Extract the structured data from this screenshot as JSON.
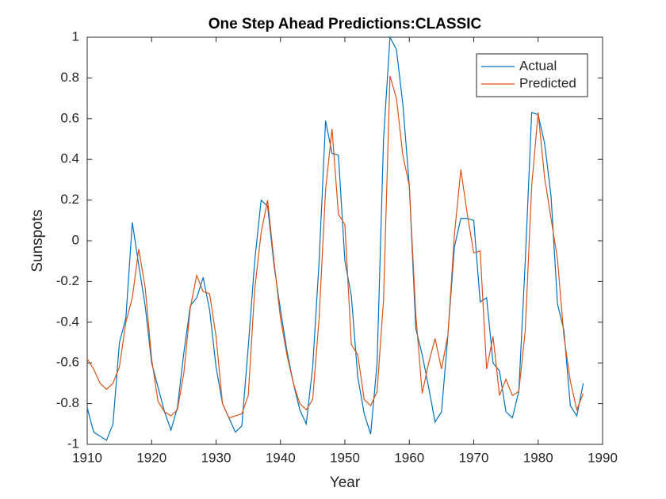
{
  "chart_data": {
    "type": "line",
    "title": "One Step Ahead Predictions:CLASSIC",
    "x_label": "Year",
    "y_label": "Sunspots",
    "x": [
      1910,
      1911,
      1912,
      1913,
      1914,
      1915,
      1916,
      1917,
      1918,
      1919,
      1920,
      1921,
      1922,
      1923,
      1924,
      1925,
      1926,
      1927,
      1928,
      1929,
      1930,
      1931,
      1932,
      1933,
      1934,
      1935,
      1936,
      1937,
      1938,
      1939,
      1940,
      1941,
      1942,
      1943,
      1944,
      1945,
      1946,
      1947,
      1948,
      1949,
      1950,
      1951,
      1952,
      1953,
      1954,
      1955,
      1956,
      1957,
      1958,
      1959,
      1960,
      1961,
      1962,
      1963,
      1964,
      1965,
      1966,
      1967,
      1968,
      1969,
      1970,
      1971,
      1972,
      1973,
      1974,
      1975,
      1976,
      1977,
      1978,
      1979,
      1980,
      1981,
      1982,
      1983,
      1984,
      1985,
      1986,
      1987
    ],
    "series": [
      {
        "name": "Actual",
        "color": "#0072bd",
        "values": [
          -0.82,
          -0.94,
          -0.96,
          -0.98,
          -0.9,
          -0.5,
          -0.38,
          0.09,
          -0.12,
          -0.32,
          -0.6,
          -0.72,
          -0.84,
          -0.93,
          -0.82,
          -0.55,
          -0.32,
          -0.28,
          -0.18,
          -0.34,
          -0.62,
          -0.8,
          -0.87,
          -0.94,
          -0.91,
          -0.52,
          -0.1,
          0.2,
          0.17,
          -0.12,
          -0.34,
          -0.54,
          -0.7,
          -0.83,
          -0.9,
          -0.62,
          -0.1,
          0.59,
          0.43,
          0.42,
          -0.1,
          -0.27,
          -0.67,
          -0.85,
          -0.95,
          -0.6,
          0.5,
          1.0,
          0.94,
          0.67,
          0.27,
          -0.43,
          -0.56,
          -0.72,
          -0.89,
          -0.84,
          -0.46,
          -0.03,
          0.11,
          0.11,
          0.1,
          -0.3,
          -0.28,
          -0.6,
          -0.64,
          -0.84,
          -0.87,
          -0.74,
          -0.1,
          0.63,
          0.62,
          0.48,
          0.22,
          -0.31,
          -0.44,
          -0.81,
          -0.86,
          -0.7
        ]
      },
      {
        "name": "Predicted",
        "color": "#d95319",
        "values": [
          -0.58,
          -0.63,
          -0.7,
          -0.73,
          -0.7,
          -0.62,
          -0.4,
          -0.28,
          -0.04,
          -0.23,
          -0.58,
          -0.79,
          -0.84,
          -0.86,
          -0.83,
          -0.65,
          -0.33,
          -0.17,
          -0.25,
          -0.26,
          -0.47,
          -0.8,
          -0.87,
          -0.86,
          -0.85,
          -0.76,
          -0.24,
          0.04,
          0.2,
          -0.1,
          -0.38,
          -0.56,
          -0.7,
          -0.8,
          -0.83,
          -0.78,
          -0.38,
          0.25,
          0.55,
          0.13,
          0.08,
          -0.51,
          -0.56,
          -0.78,
          -0.81,
          -0.74,
          -0.29,
          0.81,
          0.7,
          0.42,
          0.27,
          -0.36,
          -0.75,
          -0.6,
          -0.48,
          -0.63,
          -0.46,
          0.03,
          0.35,
          0.13,
          -0.06,
          -0.05,
          -0.63,
          -0.47,
          -0.76,
          -0.68,
          -0.76,
          -0.74,
          -0.44,
          0.27,
          0.63,
          0.31,
          0.11,
          -0.09,
          -0.47,
          -0.69,
          -0.83,
          -0.75
        ]
      }
    ],
    "xlim": [
      1910,
      1990
    ],
    "xticks": [
      1910,
      1920,
      1930,
      1940,
      1950,
      1960,
      1970,
      1980,
      1990
    ],
    "ylim": [
      -1,
      1
    ],
    "yticks": [
      -1,
      -0.8,
      -0.6,
      -0.4,
      -0.2,
      0,
      0.2,
      0.4,
      0.6,
      0.8,
      1
    ],
    "grid": false,
    "legend": "upper right"
  }
}
